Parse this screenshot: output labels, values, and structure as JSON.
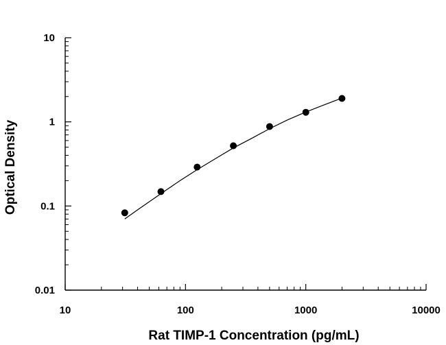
{
  "chart_data": {
    "type": "scatter",
    "xlabel": "Rat TIMP-1 Concentration (pg/mL)",
    "ylabel": "Optical Density",
    "x_scale": "log",
    "y_scale": "log",
    "xlim": [
      10,
      10000
    ],
    "ylim": [
      0.01,
      10
    ],
    "x_ticks": [
      "10",
      "100",
      "1000",
      "10000"
    ],
    "y_ticks": [
      "10",
      "1",
      "0.1",
      "0.01"
    ],
    "grid": false,
    "legend": "none",
    "series": [
      {
        "x": [
          31.25,
          62.5,
          125,
          250,
          500,
          1000,
          2000
        ],
        "y": [
          0.083,
          0.148,
          0.29,
          0.52,
          0.88,
          1.3,
          1.9
        ],
        "marker": "circle",
        "color": "#000000"
      }
    ],
    "fit_curve": {
      "x": [
        31.25,
        40,
        62.5,
        90,
        125,
        180,
        250,
        350,
        500,
        700,
        1000,
        1400,
        2000
      ],
      "y": [
        0.07,
        0.09,
        0.14,
        0.2,
        0.27,
        0.37,
        0.49,
        0.63,
        0.83,
        1.05,
        1.31,
        1.58,
        1.92
      ],
      "color": "#000000"
    }
  }
}
